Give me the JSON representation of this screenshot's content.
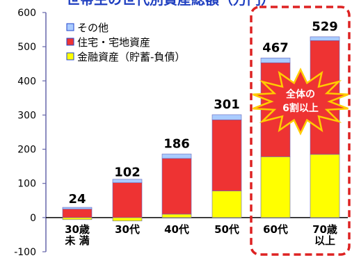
{
  "chart_data": {
    "type": "bar",
    "stacked": true,
    "title": "世帯主の世代別資産総額（万円）",
    "categories": [
      {
        "line1": "30歳",
        "line2": "未 満"
      },
      {
        "line1": "30代",
        "line2": ""
      },
      {
        "line1": "40代",
        "line2": ""
      },
      {
        "line1": "50代",
        "line2": ""
      },
      {
        "line1": "60代",
        "line2": ""
      },
      {
        "line1": "70歳",
        "line2": "以上"
      }
    ],
    "series": [
      {
        "name": "金融資産（貯蓄-負債）",
        "color": "#ffff00",
        "values": [
          -6,
          -10,
          10,
          78,
          178,
          185
        ]
      },
      {
        "name": "住宅・宅地資産",
        "color": "#ee3333",
        "values": [
          25,
          102,
          163,
          208,
          275,
          333
        ]
      },
      {
        "name": "その他",
        "color": "#aaccff",
        "values": [
          5,
          10,
          13,
          15,
          14,
          11
        ]
      }
    ],
    "totals": [
      24,
      102,
      186,
      301,
      467,
      529
    ],
    "ylim": [
      -100,
      600
    ],
    "yticks": [
      -100,
      0,
      100,
      200,
      300,
      400,
      500,
      600
    ],
    "legend_position": "top-left",
    "highlight": {
      "categories": [
        4,
        5
      ],
      "annotation_line1": "全体の",
      "annotation_line2": "6割以上"
    }
  },
  "colors": {
    "axis": "#000000",
    "frame": "#6666aa",
    "highlight_border": "#dd2222",
    "starburst_fill": "#ee3333",
    "starburst_stroke": "#ffcc00",
    "bar_outline": "#6666bb"
  }
}
